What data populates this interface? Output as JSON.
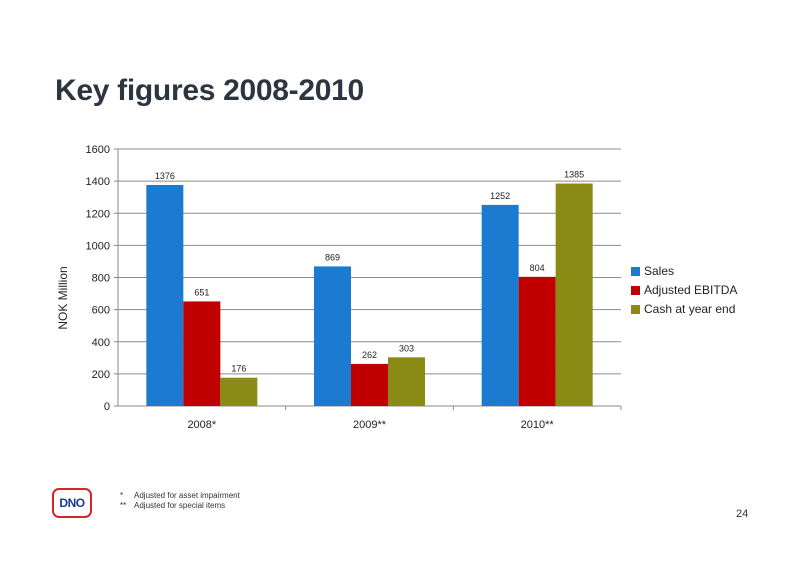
{
  "page": {
    "title": "Key figures 2008-2010",
    "page_number": "24",
    "logo_text": "DNO",
    "footnotes": [
      {
        "mark": "*",
        "text": "Adjusted for asset impairment"
      },
      {
        "mark": "**",
        "text": "Adjusted for special items"
      }
    ]
  },
  "chart_data": {
    "type": "bar",
    "title": "",
    "xlabel": "",
    "ylabel": "NOK Million",
    "categories": [
      "2008*",
      "2009**",
      "2010**"
    ],
    "series": [
      {
        "name": "Sales",
        "color": "#1a7bd1",
        "values": [
          1376,
          869,
          1252
        ]
      },
      {
        "name": "Adjusted EBITDA",
        "color": "#c00000",
        "values": [
          651,
          262,
          804
        ]
      },
      {
        "name": "Cash at year end",
        "color": "#8a8a14",
        "values": [
          176,
          303,
          1385
        ]
      }
    ],
    "ylim": [
      0,
      1600
    ],
    "yticks": [
      0,
      200,
      400,
      600,
      800,
      1000,
      1200,
      1400,
      1600
    ],
    "grid": true,
    "legend_position": "right"
  }
}
